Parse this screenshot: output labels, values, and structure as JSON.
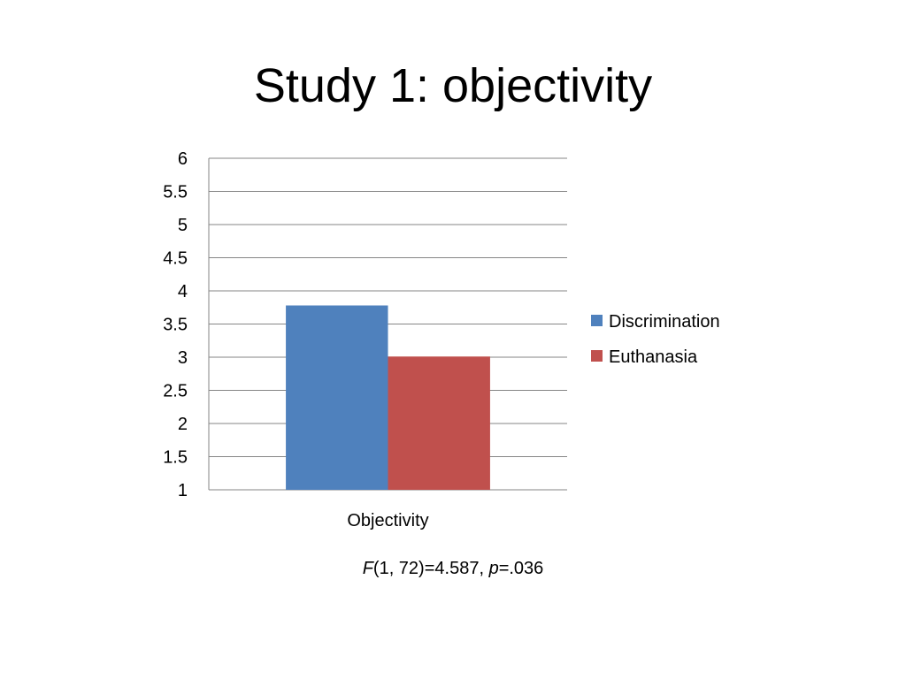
{
  "slide": {
    "title": "Study 1: objectivity"
  },
  "chart_data": {
    "type": "bar",
    "title": "",
    "categories": [
      "Objectivity"
    ],
    "series": [
      {
        "name": "Discrimination",
        "color": "#4F81BD",
        "values": [
          3.78
        ]
      },
      {
        "name": "Euthanasia",
        "color": "#C0504D",
        "values": [
          3.01
        ]
      }
    ],
    "ylim": [
      1,
      6
    ],
    "yticks": [
      "1",
      "1.5",
      "2",
      "2.5",
      "3",
      "3.5",
      "4",
      "4.5",
      "5",
      "5.5",
      "6"
    ],
    "grid": true,
    "legend": "right"
  },
  "stats": {
    "f_symbol": "F",
    "f_args": "(1, 72)=4.587, ",
    "p_symbol": "p",
    "p_value": "=.036"
  }
}
